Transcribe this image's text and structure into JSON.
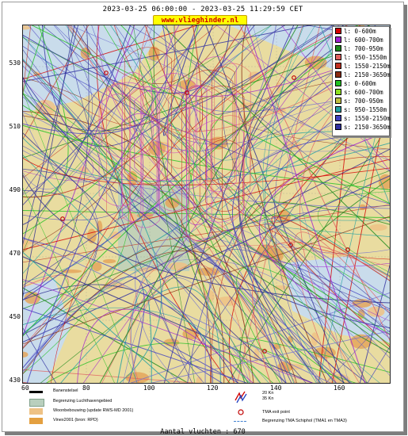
{
  "header": {
    "date_range": "2023-03-25 06:00:00 - 2023-03-25 11:29:59 CET",
    "site": "www.vlieghinder.nl"
  },
  "map": {
    "y_ticks": [
      "530",
      "510",
      "490",
      "470",
      "450",
      "430"
    ],
    "x_ticks": [
      "60",
      "80",
      "100",
      "120",
      "140",
      "160"
    ],
    "colors": {
      "land": "#e9dca0",
      "urban": "#e4a65c",
      "water": "#c9dceb",
      "airport": "#b9cfbd"
    }
  },
  "legend": {
    "items": [
      {
        "label": "l: 0-600m",
        "color": "#d40000"
      },
      {
        "label": "l: 600-700m",
        "color": "#a020d0"
      },
      {
        "label": "l: 700-950m",
        "color": "#1a8a1a"
      },
      {
        "label": "l: 950-1550m",
        "color": "#e06060"
      },
      {
        "label": "l: 1550-2150m",
        "color": "#c03020"
      },
      {
        "label": "l: 2150-3650m",
        "color": "#8a2a10"
      },
      {
        "label": "s: 0-600m",
        "color": "#20c020"
      },
      {
        "label": "s: 600-700m",
        "color": "#90e020"
      },
      {
        "label": "s: 700-950m",
        "color": "#c0c040"
      },
      {
        "label": "s: 950-1550m",
        "color": "#20a0a0"
      },
      {
        "label": "s: 1550-2150m",
        "color": "#4040c0"
      },
      {
        "label": "s: 2150-3650m",
        "color": "#3030a0"
      }
    ]
  },
  "bottom_legend": {
    "runway": "Banenstelsel",
    "airport_boundary": "Begrenzing Luchthavengebied",
    "housing": "Woonbebouwing (update RWS-MD 2001)",
    "vinex": "Vinex2001 (bron: RPD)",
    "wind_20": "20 Kn",
    "wind_35": "35 Kn",
    "tma_exit": "TMA exit point",
    "tma_boundary": "Begrenzing TMA Schiphol  (TMA1 en TMA3)"
  },
  "footer": {
    "flights": "Aantal vluchten : 670"
  }
}
